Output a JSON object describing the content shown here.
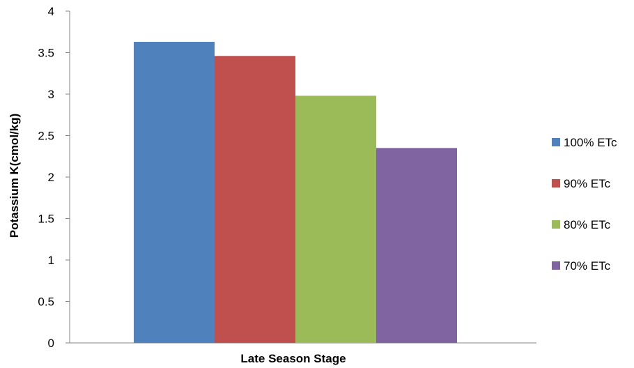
{
  "chart_data": {
    "type": "bar",
    "title": "",
    "xlabel": "Late Season Stage",
    "ylabel": "Potassium K(cmol/kg)",
    "categories": [
      "Late Season Stage"
    ],
    "series": [
      {
        "name": "100% ETc",
        "values": [
          3.63
        ],
        "color": "#4F81BD"
      },
      {
        "name": "90% ETc",
        "values": [
          3.46
        ],
        "color": "#C0504D"
      },
      {
        "name": "80% ETc",
        "values": [
          2.98
        ],
        "color": "#9BBB59"
      },
      {
        "name": "70% ETc",
        "values": [
          2.35
        ],
        "color": "#8064A2"
      }
    ],
    "ylim": [
      0,
      4
    ],
    "yticks": [
      "0",
      "0.5",
      "1",
      "1.5",
      "2",
      "2.5",
      "3",
      "3.5",
      "4"
    ],
    "grid": false,
    "legend_position": "right"
  }
}
